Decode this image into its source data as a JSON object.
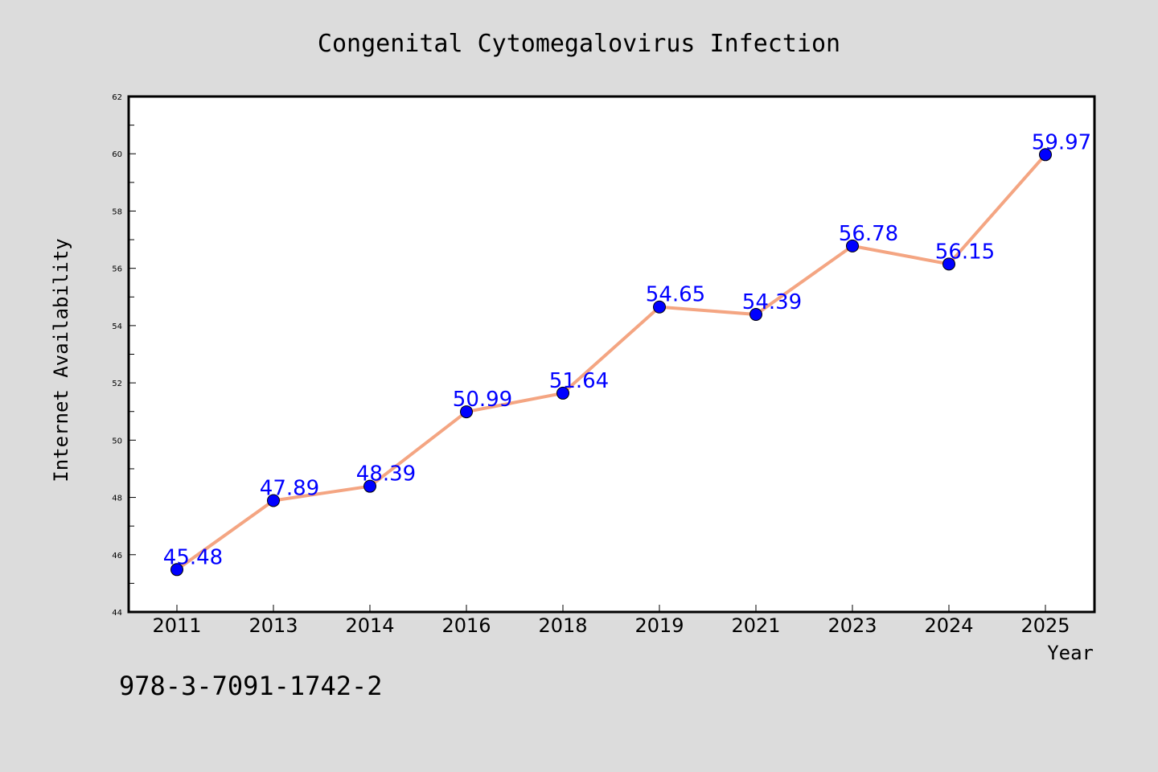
{
  "chart_data": {
    "type": "line",
    "title": "Congenital Cytomegalovirus Infection",
    "xlabel": "Year",
    "ylabel": "Internet Availability",
    "categories": [
      "2011",
      "2013",
      "2014",
      "2016",
      "2018",
      "2019",
      "2021",
      "2023",
      "2024",
      "2025"
    ],
    "series": [
      {
        "values": [
          45.48,
          47.89,
          48.39,
          50.99,
          51.64,
          54.65,
          54.39,
          56.78,
          56.15,
          59.97
        ],
        "labels": [
          "45.48",
          "47.89",
          "48.39",
          "50.99",
          "51.64",
          "54.65",
          "54.39",
          "56.78",
          "56.15",
          "59.97"
        ],
        "line_color": "#f4a582",
        "marker_color": "#0000ff"
      }
    ],
    "ylim": [
      44,
      62
    ],
    "yticks": [
      "44",
      "46",
      "48",
      "50",
      "52",
      "54",
      "56",
      "58",
      "60",
      "62"
    ],
    "grid": false,
    "legend": "none"
  },
  "footer": {
    "isbn": "978-3-7091-1742-2"
  },
  "colors": {
    "background": "#dcdcdc",
    "plot_area": "#ffffff",
    "label_color": "#0000ff"
  }
}
